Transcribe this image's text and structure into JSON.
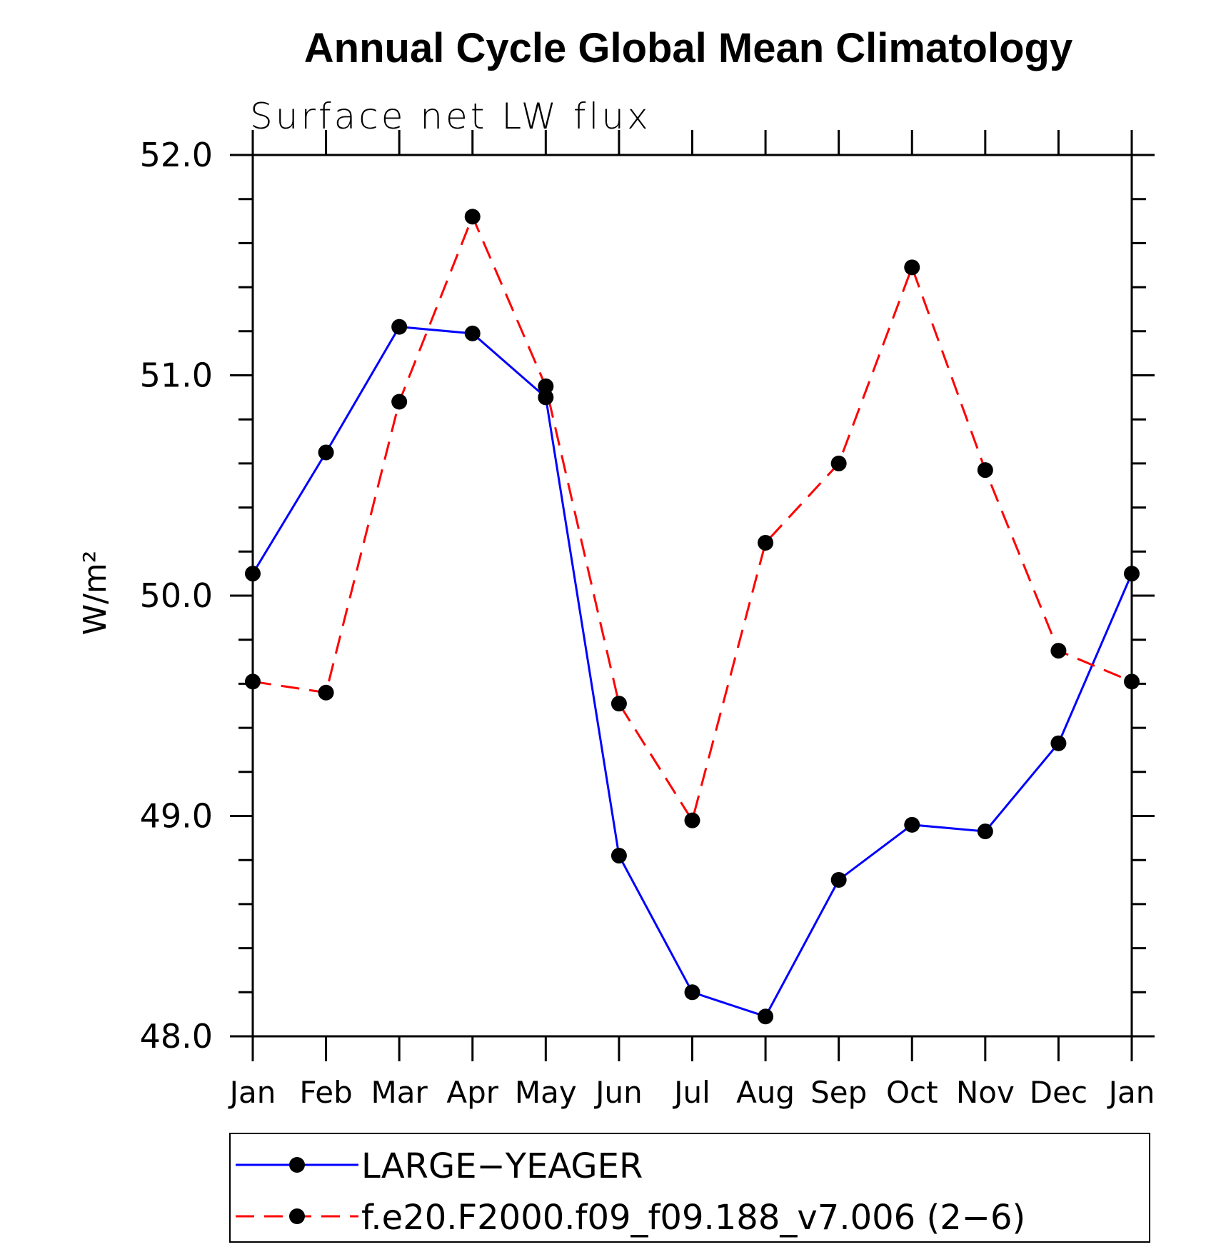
{
  "chart_data": {
    "type": "line",
    "title": "Annual Cycle Global Mean Climatology",
    "subtitle": "Surface net LW flux",
    "ylabel": "W/m²",
    "ylim": [
      48.0,
      52.0
    ],
    "yticks": [
      "48.0",
      "49.0",
      "50.0",
      "51.0",
      "52.0"
    ],
    "categories": [
      "Jan",
      "Feb",
      "Mar",
      "Apr",
      "May",
      "Jun",
      "Jul",
      "Aug",
      "Sep",
      "Oct",
      "Nov",
      "Dec",
      "Jan"
    ],
    "series": [
      {
        "name": "LARGE−YEAGER",
        "color": "#0000ff",
        "dash": "solid",
        "values": [
          50.1,
          50.65,
          51.22,
          51.19,
          50.9,
          48.82,
          48.2,
          48.09,
          48.71,
          48.96,
          48.93,
          49.33,
          50.1
        ]
      },
      {
        "name": "f.e20.F2000.f09_f09.188_v7.006 (2−6)",
        "color": "#ff0000",
        "dash": "dashed",
        "values": [
          49.61,
          49.56,
          50.88,
          51.72,
          50.95,
          49.51,
          48.98,
          50.24,
          50.6,
          51.49,
          50.57,
          49.75,
          49.61
        ]
      }
    ],
    "legend_position": "bottom"
  }
}
